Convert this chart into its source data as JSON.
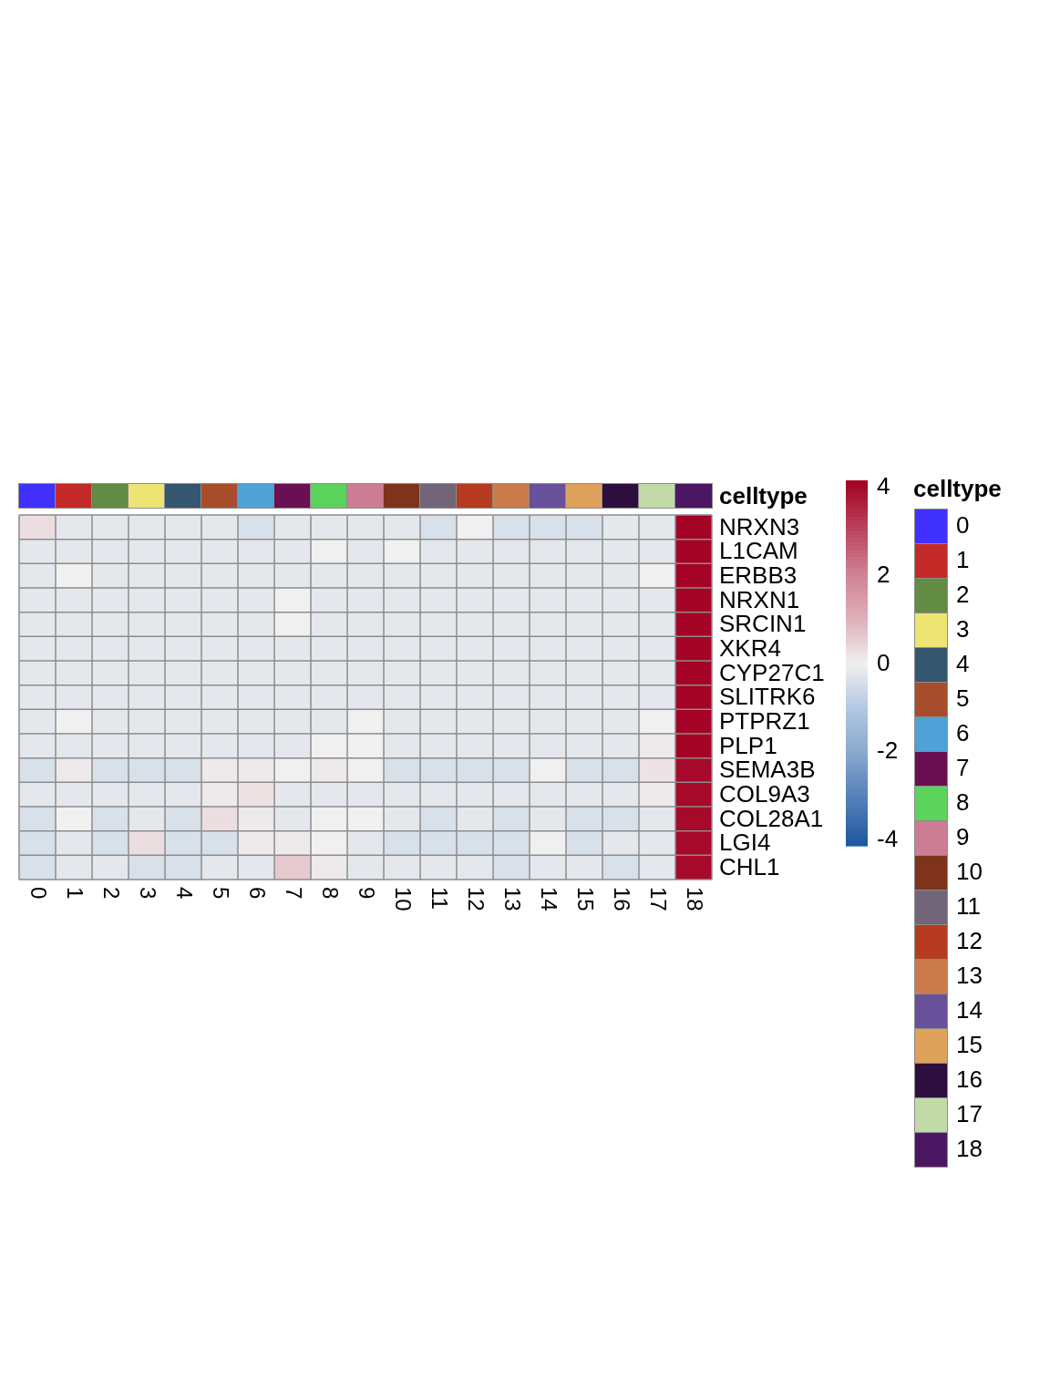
{
  "chart_data": {
    "type": "heatmap",
    "categories": [
      "0",
      "1",
      "2",
      "3",
      "4",
      "5",
      "6",
      "7",
      "8",
      "9",
      "10",
      "11",
      "12",
      "13",
      "14",
      "15",
      "16",
      "17",
      "18"
    ],
    "y_categories": [
      "NRXN3",
      "L1CAM",
      "ERBB3",
      "NRXN1",
      "SRCIN1",
      "XKR4",
      "CYP27C1",
      "SLITRK6",
      "PTPRZ1",
      "PLP1",
      "SEMA3B",
      "COL9A3",
      "COL28A1",
      "LGI4",
      "CHL1"
    ],
    "cells": [
      [
        0.3,
        -0.2,
        -0.2,
        -0.2,
        -0.2,
        -0.2,
        -0.4,
        -0.2,
        -0.2,
        -0.2,
        -0.2,
        -0.4,
        0,
        -0.4,
        -0.4,
        -0.4,
        -0.2,
        -0.2,
        4.1
      ],
      [
        -0.2,
        -0.2,
        -0.2,
        -0.2,
        -0.2,
        -0.2,
        -0.2,
        -0.2,
        0,
        -0.2,
        0,
        -0.2,
        -0.2,
        -0.2,
        -0.2,
        -0.2,
        -0.2,
        -0.2,
        4.1
      ],
      [
        -0.2,
        0,
        -0.2,
        -0.2,
        -0.2,
        -0.2,
        -0.2,
        -0.2,
        -0.2,
        -0.2,
        -0.2,
        -0.2,
        -0.2,
        -0.2,
        -0.2,
        -0.2,
        -0.2,
        0,
        4.1
      ],
      [
        -0.2,
        -0.2,
        -0.2,
        -0.2,
        -0.2,
        -0.2,
        -0.2,
        0,
        -0.2,
        -0.2,
        -0.2,
        -0.2,
        -0.2,
        -0.2,
        -0.2,
        -0.2,
        -0.2,
        -0.2,
        4.1
      ],
      [
        -0.2,
        -0.2,
        -0.2,
        -0.2,
        -0.2,
        -0.2,
        -0.2,
        0,
        -0.2,
        -0.2,
        -0.2,
        -0.2,
        -0.2,
        -0.2,
        -0.2,
        -0.2,
        -0.2,
        -0.2,
        4.1
      ],
      [
        -0.2,
        -0.2,
        -0.2,
        -0.2,
        -0.2,
        -0.2,
        -0.2,
        -0.2,
        -0.2,
        -0.2,
        -0.2,
        -0.2,
        -0.2,
        -0.2,
        -0.2,
        -0.2,
        -0.2,
        -0.2,
        4.1
      ],
      [
        -0.2,
        -0.2,
        -0.2,
        -0.2,
        -0.2,
        -0.2,
        -0.2,
        -0.2,
        -0.2,
        -0.2,
        -0.2,
        -0.2,
        -0.2,
        -0.2,
        -0.2,
        -0.2,
        -0.2,
        -0.2,
        4.1
      ],
      [
        -0.2,
        -0.2,
        -0.2,
        -0.2,
        -0.2,
        -0.2,
        -0.2,
        -0.2,
        -0.2,
        -0.2,
        -0.2,
        -0.2,
        -0.2,
        -0.2,
        -0.2,
        -0.2,
        -0.2,
        -0.2,
        4.1
      ],
      [
        -0.2,
        0,
        -0.2,
        -0.2,
        -0.2,
        -0.2,
        -0.2,
        -0.2,
        -0.2,
        0,
        -0.2,
        -0.2,
        -0.2,
        -0.2,
        -0.2,
        -0.2,
        -0.2,
        0,
        4.1
      ],
      [
        -0.2,
        -0.2,
        -0.2,
        -0.2,
        -0.2,
        -0.2,
        -0.2,
        -0.2,
        0,
        0,
        -0.2,
        -0.2,
        -0.2,
        -0.2,
        -0.2,
        -0.2,
        -0.2,
        0.1,
        4.1
      ],
      [
        -0.4,
        0.1,
        -0.4,
        -0.4,
        -0.4,
        0.1,
        0.1,
        0,
        0.1,
        0,
        -0.4,
        -0.4,
        -0.4,
        -0.4,
        0,
        -0.4,
        -0.4,
        0.2,
        4
      ],
      [
        -0.2,
        -0.2,
        -0.2,
        -0.2,
        -0.2,
        0.1,
        0.2,
        -0.2,
        -0.2,
        -0.2,
        -0.2,
        -0.2,
        -0.2,
        -0.2,
        -0.2,
        -0.2,
        -0.2,
        0.1,
        4
      ],
      [
        -0.4,
        0,
        -0.4,
        -0.2,
        -0.4,
        0.3,
        0.1,
        -0.2,
        0,
        0,
        -0.2,
        -0.4,
        -0.2,
        -0.4,
        -0.2,
        -0.4,
        -0.4,
        -0.2,
        4
      ],
      [
        -0.4,
        -0.2,
        -0.4,
        0.3,
        -0.4,
        -0.4,
        0.1,
        0.1,
        0,
        -0.2,
        -0.4,
        -0.4,
        -0.4,
        -0.4,
        0,
        -0.4,
        -0.2,
        -0.2,
        4
      ],
      [
        -0.4,
        -0.2,
        -0.2,
        -0.4,
        -0.4,
        -0.2,
        -0.2,
        0.6,
        0.1,
        -0.2,
        -0.2,
        -0.2,
        -0.2,
        -0.4,
        -0.2,
        -0.2,
        -0.4,
        -0.2,
        4
      ]
    ],
    "clim": [
      -4.15,
      4.15
    ],
    "cticks": [
      -4,
      -2,
      0,
      2,
      4
    ],
    "colors": [
      "#4030fe",
      "#c32a27",
      "#628b44",
      "#ede473",
      "#35566f",
      "#a84d2c",
      "#4fa1d7",
      "#6a0f52",
      "#5cd35a",
      "#cc7c93",
      "#7e341b",
      "#716677",
      "#b73b20",
      "#cb7b4a",
      "#69509a",
      "#dfa25b",
      "#2c0e3f",
      "#c2d9a8",
      "#4b1763"
    ],
    "legend_title": "celltype",
    "annotations": [
      "celltype"
    ]
  }
}
